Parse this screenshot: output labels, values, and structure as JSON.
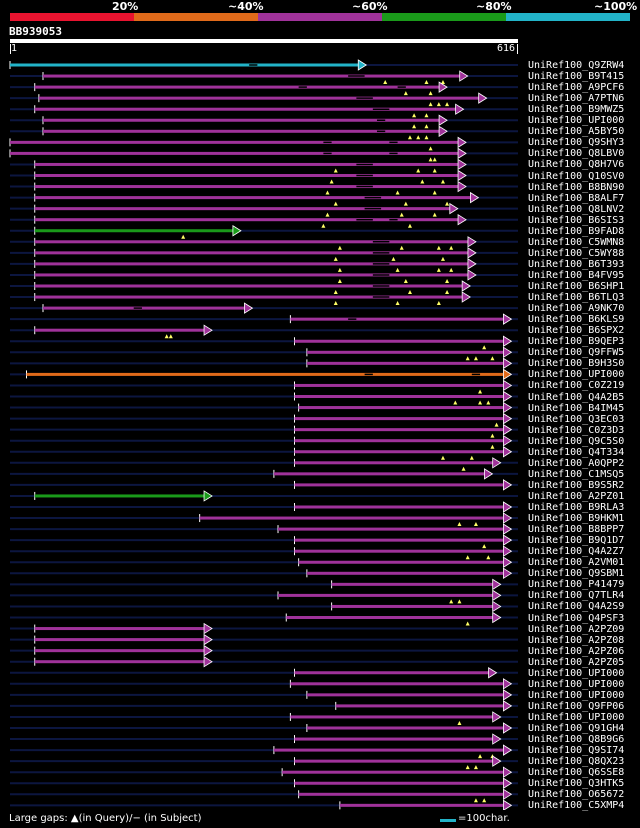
{
  "colors": {
    "red": "#e8132f",
    "orange": "#e06a1a",
    "magenta": "#a0329a",
    "green": "#1a9a1a",
    "cyan": "#22b3c8",
    "track": "#0c1640",
    "gap": "#000000",
    "marker": "#ffff66"
  },
  "legend": {
    "segments": [
      {
        "label": "20%",
        "color": "#e8132f"
      },
      {
        "label": "~40%",
        "color": "#e06a1a"
      },
      {
        "label": "~60%",
        "color": "#a0329a"
      },
      {
        "label": "~80%",
        "color": "#1a9a1a"
      },
      {
        "label": "~100%",
        "color": "#22b3c8"
      }
    ]
  },
  "query": {
    "id": "BB939053",
    "start": "1",
    "end": "616",
    "length": 616
  },
  "hits": [
    {
      "id": "UniRef100_Q9ZRW4",
      "color": "cyan",
      "start": 0,
      "end": 432,
      "gaps": [
        [
          290,
          300
        ]
      ],
      "marks": []
    },
    {
      "id": "UniRef100_B9T415",
      "color": "magenta",
      "start": 40,
      "end": 555,
      "gaps": [
        [
          410,
          430
        ]
      ],
      "marks": [
        455,
        505,
        525
      ]
    },
    {
      "id": "UniRef100_A9PCF6",
      "color": "magenta",
      "start": 30,
      "end": 530,
      "gaps": [
        [
          350,
          360
        ],
        [
          470,
          480
        ]
      ],
      "marks": [
        480,
        510
      ]
    },
    {
      "id": "UniRef100_A7PTN6",
      "color": "magenta",
      "start": 35,
      "end": 578,
      "gaps": [
        [
          420,
          440
        ]
      ],
      "marks": [
        510,
        520,
        530
      ]
    },
    {
      "id": "UniRef100_B9MWZ5",
      "color": "magenta",
      "start": 30,
      "end": 550,
      "gaps": [
        [
          440,
          460
        ]
      ],
      "marks": [
        490,
        505
      ]
    },
    {
      "id": "UniRef100_UPI000",
      "color": "magenta",
      "start": 40,
      "end": 530,
      "gaps": [
        [
          445,
          455
        ]
      ],
      "marks": [
        490,
        505
      ]
    },
    {
      "id": "UniRef100_A5BY50",
      "color": "magenta",
      "start": 40,
      "end": 530,
      "gaps": [
        [
          445,
          455
        ]
      ],
      "marks": [
        485,
        495,
        505
      ]
    },
    {
      "id": "UniRef100_Q9SHY3",
      "color": "magenta",
      "start": 0,
      "end": 553,
      "gaps": [
        [
          380,
          390
        ],
        [
          460,
          470
        ]
      ],
      "marks": [
        510
      ]
    },
    {
      "id": "UniRef100_Q8LBV0",
      "color": "magenta",
      "start": 0,
      "end": 553,
      "gaps": [
        [
          380,
          390
        ],
        [
          460,
          470
        ]
      ],
      "marks": [
        510,
        515
      ]
    },
    {
      "id": "UniRef100_Q8H7V6",
      "color": "magenta",
      "start": 30,
      "end": 553,
      "gaps": [
        [
          420,
          440
        ]
      ],
      "marks": [
        395,
        495,
        515
      ]
    },
    {
      "id": "UniRef100_Q10SV0",
      "color": "magenta",
      "start": 30,
      "end": 553,
      "gaps": [
        [
          420,
          440
        ]
      ],
      "marks": [
        390,
        500,
        525
      ]
    },
    {
      "id": "UniRef100_B8BN90",
      "color": "magenta",
      "start": 30,
      "end": 553,
      "gaps": [
        [
          420,
          440
        ]
      ],
      "marks": [
        385,
        470,
        515
      ]
    },
    {
      "id": "UniRef100_B8ALF7",
      "color": "magenta",
      "start": 30,
      "end": 568,
      "gaps": [
        [
          430,
          450
        ]
      ],
      "marks": [
        395,
        480,
        530
      ]
    },
    {
      "id": "UniRef100_Q8LNV2",
      "color": "magenta",
      "start": 30,
      "end": 543,
      "gaps": [
        [
          430,
          450
        ]
      ],
      "marks": [
        385,
        475,
        515
      ]
    },
    {
      "id": "UniRef100_B6SIS3",
      "color": "magenta",
      "start": 30,
      "end": 553,
      "gaps": [
        [
          420,
          440
        ],
        [
          460,
          470
        ]
      ],
      "marks": [
        380,
        485
      ]
    },
    {
      "id": "UniRef100_B9FAD8",
      "color": "green",
      "start": 30,
      "end": 280,
      "gaps": [],
      "marks": [
        210
      ]
    },
    {
      "id": "UniRef100_C5WMN8",
      "color": "magenta",
      "start": 30,
      "end": 565,
      "gaps": [
        [
          440,
          460
        ]
      ],
      "marks": [
        400,
        475,
        520,
        535
      ]
    },
    {
      "id": "UniRef100_C5WY88",
      "color": "magenta",
      "start": 30,
      "end": 565,
      "gaps": [
        [
          440,
          460
        ]
      ],
      "marks": [
        395,
        465,
        525
      ]
    },
    {
      "id": "UniRef100_B6T393",
      "color": "magenta",
      "start": 30,
      "end": 565,
      "gaps": [
        [
          440,
          460
        ]
      ],
      "marks": [
        400,
        470,
        520,
        535
      ]
    },
    {
      "id": "UniRef100_B4FV95",
      "color": "magenta",
      "start": 30,
      "end": 565,
      "gaps": [
        [
          440,
          460
        ]
      ],
      "marks": [
        400,
        480,
        530
      ]
    },
    {
      "id": "UniRef100_B6SHP1",
      "color": "magenta",
      "start": 30,
      "end": 558,
      "gaps": [
        [
          440,
          460
        ]
      ],
      "marks": [
        395,
        485,
        530
      ]
    },
    {
      "id": "UniRef100_B6TLQ3",
      "color": "magenta",
      "start": 30,
      "end": 558,
      "gaps": [
        [
          440,
          460
        ]
      ],
      "marks": [
        395,
        470,
        520
      ]
    },
    {
      "id": "UniRef100_A9NK70",
      "color": "magenta",
      "start": 40,
      "end": 294,
      "gaps": [
        [
          150,
          160
        ]
      ],
      "marks": []
    },
    {
      "id": "UniRef100_B6KLS9",
      "color": "magenta",
      "start": 340,
      "end": 608,
      "gaps": [
        [
          410,
          420
        ]
      ],
      "marks": []
    },
    {
      "id": "UniRef100_B6SPX2",
      "color": "magenta",
      "start": 30,
      "end": 245,
      "gaps": [],
      "marks": [
        190,
        195
      ]
    },
    {
      "id": "UniRef100_B9QEP3",
      "color": "magenta",
      "start": 345,
      "end": 608,
      "gaps": [],
      "marks": [
        575
      ]
    },
    {
      "id": "UniRef100_Q9FFW5",
      "color": "magenta",
      "start": 360,
      "end": 608,
      "gaps": [],
      "marks": [
        555,
        565,
        585
      ]
    },
    {
      "id": "UniRef100_B9H3S0",
      "color": "magenta",
      "start": 360,
      "end": 608,
      "gaps": [],
      "marks": []
    },
    {
      "id": "UniRef100_UPI000",
      "color": "orange",
      "start": 20,
      "end": 608,
      "gaps": [
        [
          430,
          440
        ],
        [
          560,
          570
        ]
      ],
      "marks": []
    },
    {
      "id": "UniRef100_C0Z219",
      "color": "magenta",
      "start": 345,
      "end": 608,
      "gaps": [],
      "marks": [
        570
      ]
    },
    {
      "id": "UniRef100_Q4A2B5",
      "color": "magenta",
      "start": 345,
      "end": 608,
      "gaps": [],
      "marks": [
        540,
        570,
        580
      ]
    },
    {
      "id": "UniRef100_B4IM45",
      "color": "magenta",
      "start": 350,
      "end": 608,
      "gaps": [],
      "marks": []
    },
    {
      "id": "UniRef100_Q3EC03",
      "color": "magenta",
      "start": 345,
      "end": 608,
      "gaps": [],
      "marks": [
        590
      ]
    },
    {
      "id": "UniRef100_C0Z3D3",
      "color": "magenta",
      "start": 345,
      "end": 608,
      "gaps": [],
      "marks": [
        585
      ]
    },
    {
      "id": "UniRef100_Q9C5S0",
      "color": "magenta",
      "start": 345,
      "end": 608,
      "gaps": [],
      "marks": [
        585
      ]
    },
    {
      "id": "UniRef100_Q4T334",
      "color": "magenta",
      "start": 345,
      "end": 608,
      "gaps": [],
      "marks": [
        525,
        560
      ]
    },
    {
      "id": "UniRef100_A0QPP2",
      "color": "magenta",
      "start": 345,
      "end": 595,
      "gaps": [],
      "marks": [
        550
      ]
    },
    {
      "id": "UniRef100_C1MSQ5",
      "color": "magenta",
      "start": 320,
      "end": 585,
      "gaps": [],
      "marks": []
    },
    {
      "id": "UniRef100_B9S5R2",
      "color": "magenta",
      "start": 345,
      "end": 608,
      "gaps": [],
      "marks": []
    },
    {
      "id": "UniRef100_A2PZ01",
      "color": "green",
      "start": 30,
      "end": 245,
      "gaps": [],
      "marks": []
    },
    {
      "id": "UniRef100_B9RLA3",
      "color": "magenta",
      "start": 345,
      "end": 608,
      "gaps": [],
      "marks": []
    },
    {
      "id": "UniRef100_B9HKM1",
      "color": "magenta",
      "start": 230,
      "end": 608,
      "gaps": [],
      "marks": [
        545,
        565
      ]
    },
    {
      "id": "UniRef100_B8BPP7",
      "color": "magenta",
      "start": 325,
      "end": 608,
      "gaps": [],
      "marks": []
    },
    {
      "id": "UniRef100_B9Q1D7",
      "color": "magenta",
      "start": 345,
      "end": 608,
      "gaps": [],
      "marks": [
        575
      ]
    },
    {
      "id": "UniRef100_Q4A2Z7",
      "color": "magenta",
      "start": 345,
      "end": 608,
      "gaps": [],
      "marks": [
        555,
        580
      ]
    },
    {
      "id": "UniRef100_A2VM01",
      "color": "magenta",
      "start": 350,
      "end": 608,
      "gaps": [],
      "marks": []
    },
    {
      "id": "UniRef100_Q9SBM1",
      "color": "magenta",
      "start": 360,
      "end": 608,
      "gaps": [],
      "marks": []
    },
    {
      "id": "UniRef100_P41479",
      "color": "magenta",
      "start": 390,
      "end": 595,
      "gaps": [],
      "marks": []
    },
    {
      "id": "UniRef100_Q7TLR4",
      "color": "magenta",
      "start": 325,
      "end": 595,
      "gaps": [],
      "marks": [
        535,
        545
      ]
    },
    {
      "id": "UniRef100_Q4A2S9",
      "color": "magenta",
      "start": 390,
      "end": 595,
      "gaps": [],
      "marks": []
    },
    {
      "id": "UniRef100_Q4PSF3",
      "color": "magenta",
      "start": 335,
      "end": 595,
      "gaps": [],
      "marks": [
        555
      ]
    },
    {
      "id": "UniRef100_A2PZ09",
      "color": "magenta",
      "start": 30,
      "end": 245,
      "gaps": [],
      "marks": []
    },
    {
      "id": "UniRef100_A2PZ08",
      "color": "magenta",
      "start": 30,
      "end": 245,
      "gaps": [],
      "marks": []
    },
    {
      "id": "UniRef100_A2PZ06",
      "color": "magenta",
      "start": 30,
      "end": 245,
      "gaps": [],
      "marks": []
    },
    {
      "id": "UniRef100_A2PZ05",
      "color": "magenta",
      "start": 30,
      "end": 245,
      "gaps": [],
      "marks": []
    },
    {
      "id": "UniRef100_UPI000",
      "color": "magenta",
      "start": 345,
      "end": 590,
      "gaps": [],
      "marks": []
    },
    {
      "id": "UniRef100_UPI000",
      "color": "magenta",
      "start": 340,
      "end": 608,
      "gaps": [],
      "marks": []
    },
    {
      "id": "UniRef100_UPI000",
      "color": "magenta",
      "start": 360,
      "end": 608,
      "gaps": [],
      "marks": []
    },
    {
      "id": "UniRef100_Q9FP06",
      "color": "magenta",
      "start": 395,
      "end": 608,
      "gaps": [],
      "marks": []
    },
    {
      "id": "UniRef100_UPI000",
      "color": "magenta",
      "start": 340,
      "end": 595,
      "gaps": [],
      "marks": [
        545
      ]
    },
    {
      "id": "UniRef100_Q91GH4",
      "color": "magenta",
      "start": 360,
      "end": 608,
      "gaps": [],
      "marks": []
    },
    {
      "id": "UniRef100_Q8B9G6",
      "color": "magenta",
      "start": 345,
      "end": 595,
      "gaps": [],
      "marks": []
    },
    {
      "id": "UniRef100_Q9SI74",
      "color": "magenta",
      "start": 320,
      "end": 608,
      "gaps": [],
      "marks": [
        570,
        585
      ]
    },
    {
      "id": "UniRef100_Q8QX23",
      "color": "magenta",
      "start": 345,
      "end": 595,
      "gaps": [],
      "marks": [
        555,
        565
      ]
    },
    {
      "id": "UniRef100_Q6SSE8",
      "color": "magenta",
      "start": 330,
      "end": 608,
      "gaps": [],
      "marks": []
    },
    {
      "id": "UniRef100_Q3HTK5",
      "color": "magenta",
      "start": 345,
      "end": 608,
      "gaps": [],
      "marks": []
    },
    {
      "id": "UniRef100_O65672",
      "color": "magenta",
      "start": 350,
      "end": 608,
      "gaps": [],
      "marks": [
        565,
        575
      ]
    },
    {
      "id": "UniRef100_C5XMP4",
      "color": "magenta",
      "start": 400,
      "end": 608,
      "gaps": [],
      "marks": []
    }
  ],
  "footer": {
    "gaps_text": "Large gaps: ▲(in Query)/− (in Subject)",
    "scale_text": "=100char."
  }
}
